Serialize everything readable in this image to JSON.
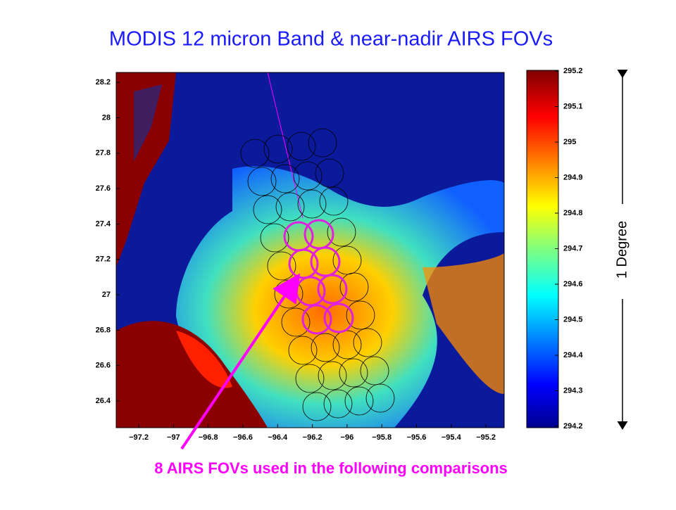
{
  "title": "MODIS 12 micron Band & near-nadir AIRS FOVs",
  "map": {
    "xlim": [
      -97.33,
      -95.095
    ],
    "ylim": [
      26.249,
      28.256
    ],
    "xticks": [
      {
        "value": -97.2,
        "label": "−97.2"
      },
      {
        "value": -97,
        "label": "−97"
      },
      {
        "value": -96.8,
        "label": "−96.8"
      },
      {
        "value": -96.6,
        "label": "−96.6"
      },
      {
        "value": -96.4,
        "label": "−96.4"
      },
      {
        "value": -96.2,
        "label": "−96.2"
      },
      {
        "value": -96,
        "label": "−96"
      },
      {
        "value": -95.8,
        "label": "−95.8"
      },
      {
        "value": -95.6,
        "label": "−95.6"
      },
      {
        "value": -95.4,
        "label": "−95.4"
      },
      {
        "value": -95.2,
        "label": "−95.2"
      }
    ],
    "yticks": [
      26.4,
      26.6,
      26.8,
      27,
      27.2,
      27.4,
      27.6,
      27.8,
      28,
      28.2
    ]
  },
  "colorbar": {
    "lim": [
      294.2,
      295.2
    ],
    "ticks": [
      294.2,
      294.3,
      294.4,
      294.5,
      294.6,
      294.7,
      294.8,
      294.9,
      295,
      295.1,
      295.2
    ]
  },
  "scale_label": "1 Degree",
  "caption": "8 AIRS FOVs used in the following comparisons"
}
